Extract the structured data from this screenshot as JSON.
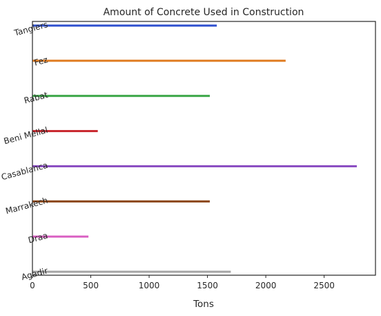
{
  "chart_data": {
    "type": "bar",
    "orientation": "horizontal",
    "title": "Amount of Concrete Used in Construction",
    "xlabel": "Tons",
    "ylabel": "",
    "categories": [
      "Tangiers",
      "Fez",
      "Rabat",
      "Beni Mellal",
      "Casablanca",
      "Marrakech",
      "Draa",
      "Agadir"
    ],
    "values": [
      1580,
      2170,
      1520,
      560,
      2780,
      1520,
      480,
      1700
    ],
    "colors": [
      "#2e4fcf",
      "#e07b20",
      "#3aa646",
      "#c8272d",
      "#8a4cc2",
      "#8a4413",
      "#d95fc2",
      "#a5a5a5"
    ],
    "xlim": [
      0,
      2940
    ],
    "xticks": [
      0,
      500,
      1000,
      1500,
      2000,
      2500
    ],
    "grid": false,
    "legend": "none"
  }
}
